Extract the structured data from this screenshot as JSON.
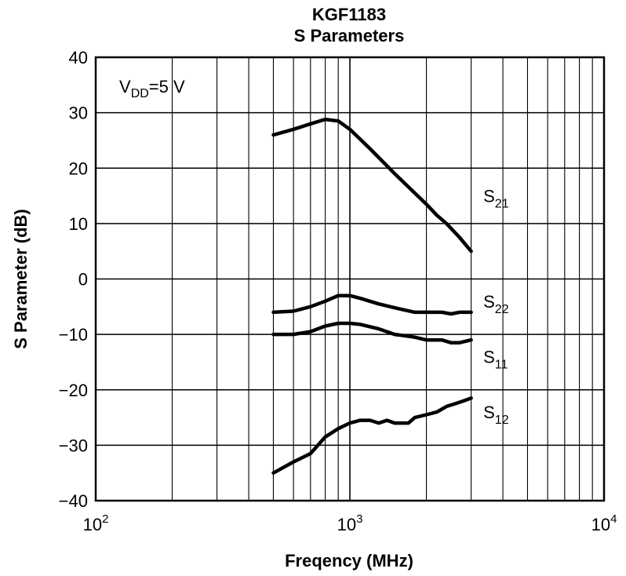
{
  "chart_data": {
    "type": "line",
    "title": "KGF1183",
    "subtitle": "S Parameters",
    "xlabel": "Freqency  (MHz)",
    "ylabel": "S Parameter  (dB)",
    "x_scale": "log",
    "xlim": [
      100,
      10000
    ],
    "ylim": [
      -40,
      40
    ],
    "grid": true,
    "annotation": {
      "base": "V",
      "sub": "DD",
      "rest": "=5 V"
    },
    "x_ticks": [
      {
        "value": 100,
        "base": "10",
        "exp": "2"
      },
      {
        "value": 1000,
        "base": "10",
        "exp": "3"
      },
      {
        "value": 10000,
        "base": "10",
        "exp": "4"
      }
    ],
    "y_ticks": [
      {
        "value": 40,
        "label": "40"
      },
      {
        "value": 30,
        "label": "30"
      },
      {
        "value": 20,
        "label": "20"
      },
      {
        "value": 10,
        "label": "10"
      },
      {
        "value": 0,
        "label": "0"
      },
      {
        "value": -10,
        "label": "−10"
      },
      {
        "value": -20,
        "label": "−20"
      },
      {
        "value": -30,
        "label": "−30"
      },
      {
        "value": -40,
        "label": "−40"
      }
    ],
    "series": [
      {
        "name": "S21",
        "label_base": "S",
        "label_sub": "21",
        "label_at": [
          3350,
          15
        ],
        "x": [
          500,
          600,
          700,
          800,
          850,
          900,
          950,
          1000,
          1100,
          1200,
          1300,
          1500,
          1700,
          2000,
          2200,
          2500,
          2700,
          3000
        ],
        "y": [
          26,
          27,
          28,
          28.8,
          28.8,
          28.5,
          28,
          27,
          25,
          23.5,
          22,
          19,
          16.5,
          13.5,
          11.5,
          9.5,
          7.5,
          5
        ]
      },
      {
        "name": "S22",
        "label_base": "S",
        "label_sub": "22",
        "label_at": [
          3350,
          -4
        ]
      },
      {
        "name": "S11",
        "label_base": "S",
        "label_sub": "11",
        "label_at": [
          3350,
          -14
        ]
      },
      {
        "name": "S12",
        "label_base": "S",
        "label_sub": "12",
        "label_at": [
          3350,
          -24
        ]
      }
    ],
    "series_values": [
      {
        "x": [
          500,
          600,
          700,
          800,
          900,
          1000,
          1200,
          1500,
          1800,
          2000,
          2200,
          2400,
          2700,
          3000
        ],
        "y": [
          26,
          27,
          28,
          28.8,
          28.5,
          27,
          23.5,
          19,
          15.5,
          13.5,
          11.5,
          10,
          7.5,
          5
        ]
      },
      {
        "x": [
          500,
          600,
          700,
          800,
          900,
          1000,
          1100,
          1300,
          1500,
          1800,
          2000,
          2300,
          2500,
          2700,
          3000
        ],
        "y": [
          -6,
          -5.8,
          -5,
          -4,
          -3,
          -3,
          -3.5,
          -4.5,
          -5.2,
          -6,
          -6,
          -6,
          -6.3,
          -6,
          -6
        ]
      },
      {
        "x": [
          500,
          600,
          700,
          800,
          900,
          1000,
          1100,
          1300,
          1500,
          1800,
          2000,
          2300,
          2500,
          2700,
          3000
        ],
        "y": [
          -10,
          -10,
          -9.5,
          -8.5,
          -8,
          -8,
          -8.2,
          -9,
          -10,
          -10.5,
          -11,
          -11,
          -11.5,
          -11.5,
          -11
        ]
      },
      {
        "x": [
          500,
          600,
          700,
          800,
          900,
          1000,
          1100,
          1200,
          1300,
          1400,
          1500,
          1700,
          1800,
          2000,
          2200,
          2400,
          2600,
          2800,
          3000
        ],
        "y": [
          -35,
          -33,
          -31.5,
          -28.5,
          -27,
          -26,
          -25.5,
          -25.5,
          -26,
          -25.5,
          -26,
          -26,
          -25,
          -24.5,
          -24,
          -23,
          -22.5,
          -22,
          -21.5
        ]
      }
    ]
  }
}
